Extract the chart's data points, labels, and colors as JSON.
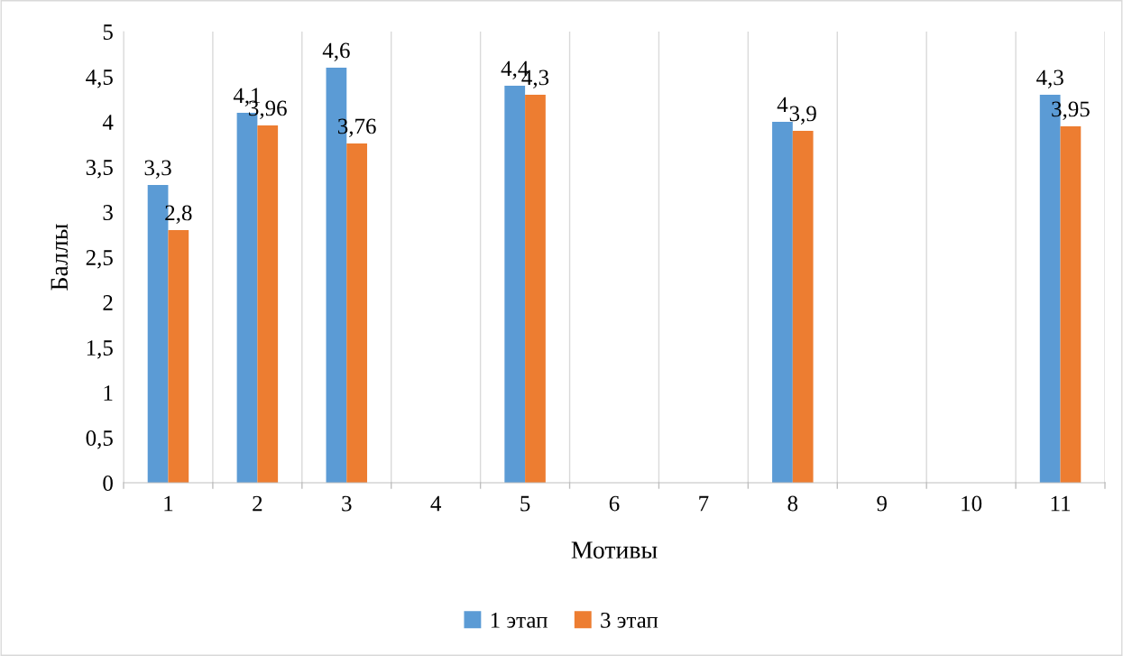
{
  "chart_data": {
    "type": "bar",
    "xlabel": "Мотивы",
    "ylabel": "Баллы",
    "categories": [
      "1",
      "2",
      "3",
      "4",
      "5",
      "6",
      "7",
      "8",
      "9",
      "10",
      "11"
    ],
    "series": [
      {
        "name": "1 этап",
        "color": "#5b9bd5",
        "values": [
          3.3,
          4.1,
          4.6,
          null,
          4.4,
          null,
          null,
          4.0,
          null,
          null,
          4.3
        ],
        "value_labels": [
          "3,3",
          "4,1",
          "4,6",
          null,
          "4,4",
          null,
          null,
          "4",
          null,
          null,
          "4,3"
        ]
      },
      {
        "name": "3 этап",
        "color": "#ed7d31",
        "values": [
          2.8,
          3.96,
          3.76,
          null,
          4.3,
          null,
          null,
          3.9,
          null,
          null,
          3.95
        ],
        "value_labels": [
          "2,8",
          "3,96",
          "3,76",
          null,
          "4,3",
          null,
          null,
          "3,9",
          null,
          null,
          "3,95"
        ]
      }
    ],
    "ylim": [
      0,
      5
    ],
    "yticks": [
      0,
      {
        "value": 0.5,
        "label": "0,5"
      },
      1,
      {
        "value": 1.5,
        "label": "1,5"
      },
      2,
      {
        "value": 2.5,
        "label": "2,5"
      },
      3,
      {
        "value": 3.5,
        "label": "3,5"
      },
      4,
      {
        "value": 4.5,
        "label": "4,5"
      },
      5
    ],
    "grid": "x",
    "legend": "bottom"
  }
}
